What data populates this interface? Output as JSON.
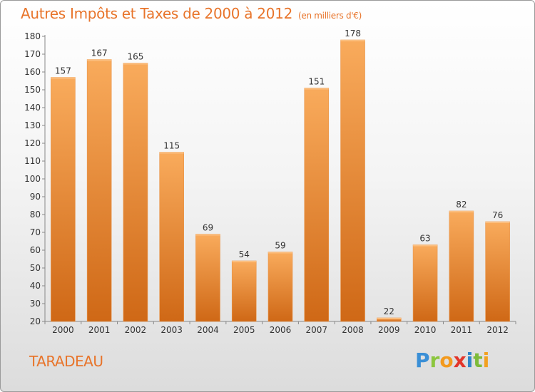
{
  "header": {
    "title": "Autres Impôts et Taxes de 2000 à 2012",
    "subtitle": "(en milliers d'€)"
  },
  "footer": {
    "commune": "TARADEAU",
    "logo": "Proxiti"
  },
  "colors": {
    "accent": "#e8742a",
    "bar_top": "#f7a85a",
    "bar_bottom": "#d06a18"
  },
  "chart_data": {
    "type": "bar",
    "categories": [
      "2000",
      "2001",
      "2002",
      "2003",
      "2004",
      "2005",
      "2006",
      "2007",
      "2008",
      "2009",
      "2010",
      "2011",
      "2012"
    ],
    "values": [
      157,
      167,
      165,
      115,
      69,
      54,
      59,
      151,
      178,
      22,
      63,
      82,
      76
    ],
    "title": "Autres Impôts et Taxes de 2000 à 2012",
    "subtitle": "(en milliers d'€)",
    "xlabel": "",
    "ylabel": "",
    "ylim": [
      20,
      180
    ],
    "yticks": [
      20,
      30,
      40,
      50,
      60,
      70,
      80,
      90,
      100,
      110,
      120,
      130,
      140,
      150,
      160,
      170,
      180
    ],
    "grid": false,
    "data_labels": true
  }
}
